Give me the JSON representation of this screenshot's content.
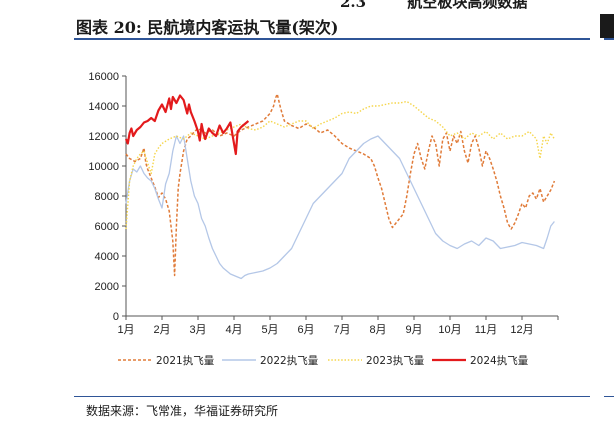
{
  "header": {
    "section_number": "2.3",
    "section_fragment": "航空板块高频数据",
    "figure_title": "图表 20:  民航境内客运执飞量(架次)",
    "source": "数据来源：飞常准，华福证券研究所"
  },
  "chart_data": {
    "type": "line",
    "title": "民航境内客运执飞量(架次)",
    "xlabel": "",
    "ylabel": "",
    "ylim": [
      0,
      16000
    ],
    "yticks": [
      "0",
      "2000",
      "4000",
      "6000",
      "8000",
      "10000",
      "12000",
      "14000",
      "16000"
    ],
    "xticks": [
      "1月",
      "2月",
      "3月",
      "4月",
      "5月",
      "6月",
      "7月",
      "8月",
      "9月",
      "10月",
      "11月",
      "12月"
    ],
    "xlim": [
      1,
      13
    ],
    "series": [
      {
        "name": "2021执飞量",
        "color": "#e07b39",
        "style": "dashed",
        "x": [
          1.0,
          1.1,
          1.25,
          1.4,
          1.5,
          1.55,
          1.6,
          1.7,
          1.8,
          1.9,
          2.0,
          2.1,
          2.2,
          2.3,
          2.35,
          2.4,
          2.45,
          2.5,
          2.6,
          2.7,
          2.8,
          2.9,
          3.0,
          3.2,
          3.4,
          3.6,
          3.8,
          4.0,
          4.2,
          4.4,
          4.6,
          4.8,
          5.0,
          5.1,
          5.15,
          5.2,
          5.3,
          5.4,
          5.6,
          5.8,
          6.0,
          6.2,
          6.4,
          6.6,
          6.8,
          7.0,
          7.2,
          7.4,
          7.6,
          7.8,
          7.9,
          8.0,
          8.1,
          8.2,
          8.3,
          8.4,
          8.5,
          8.6,
          8.7,
          8.8,
          8.9,
          9.0,
          9.1,
          9.2,
          9.3,
          9.4,
          9.5,
          9.6,
          9.7,
          9.8,
          9.9,
          10.0,
          10.1,
          10.2,
          10.3,
          10.4,
          10.5,
          10.6,
          10.7,
          10.8,
          10.9,
          11.0,
          11.1,
          11.2,
          11.3,
          11.4,
          11.5,
          11.6,
          11.7,
          11.8,
          11.9,
          12.0,
          12.1,
          12.2,
          12.3,
          12.4,
          12.5,
          12.6,
          12.7,
          12.8,
          12.9
        ],
        "values": [
          10800,
          10500,
          10300,
          10500,
          11200,
          10200,
          9800,
          9200,
          8600,
          7900,
          8200,
          7800,
          7000,
          5000,
          2700,
          6000,
          8500,
          9500,
          11000,
          11800,
          12000,
          12300,
          12500,
          12200,
          12400,
          12000,
          12200,
          12000,
          12400,
          12600,
          12800,
          13000,
          13500,
          14000,
          14500,
          14800,
          13800,
          13000,
          12700,
          12500,
          12800,
          12600,
          12200,
          12400,
          12000,
          11500,
          11200,
          11000,
          10800,
          10500,
          10000,
          9200,
          8500,
          7500,
          6500,
          5900,
          6200,
          6500,
          6800,
          8000,
          9500,
          10800,
          11500,
          10500,
          9800,
          11000,
          12000,
          11500,
          10000,
          11800,
          12200,
          11000,
          12000,
          11500,
          12300,
          11000,
          10200,
          11500,
          12000,
          11200,
          10000,
          11000,
          10500,
          9800,
          9000,
          8000,
          7200,
          6200,
          5800,
          6200,
          6800,
          7500,
          7200,
          8000,
          8200,
          7800,
          8500,
          7600,
          8000,
          8400,
          9000
        ]
      },
      {
        "name": "2022执飞量",
        "color": "#b4c7e7",
        "style": "solid",
        "x": [
          1.0,
          1.1,
          1.2,
          1.3,
          1.4,
          1.5,
          1.6,
          1.7,
          1.8,
          1.9,
          2.0,
          2.1,
          2.2,
          2.3,
          2.4,
          2.5,
          2.6,
          2.7,
          2.8,
          2.9,
          3.0,
          3.1,
          3.2,
          3.3,
          3.4,
          3.5,
          3.6,
          3.7,
          3.8,
          3.9,
          4.0,
          4.1,
          4.2,
          4.3,
          4.4,
          4.6,
          4.8,
          5.0,
          5.2,
          5.4,
          5.6,
          5.8,
          6.0,
          6.2,
          6.4,
          6.6,
          6.8,
          7.0,
          7.2,
          7.4,
          7.6,
          7.8,
          8.0,
          8.2,
          8.4,
          8.6,
          8.8,
          9.0,
          9.2,
          9.4,
          9.6,
          9.8,
          10.0,
          10.2,
          10.4,
          10.6,
          10.8,
          11.0,
          11.2,
          11.4,
          11.6,
          11.8,
          12.0,
          12.2,
          12.4,
          12.6,
          12.7,
          12.8,
          12.9
        ],
        "values": [
          7500,
          9000,
          9800,
          9600,
          10000,
          9500,
          9200,
          9000,
          8500,
          7800,
          7200,
          8800,
          9500,
          11000,
          12000,
          11500,
          12000,
          10500,
          9000,
          8000,
          7500,
          6500,
          6000,
          5200,
          4500,
          4000,
          3500,
          3200,
          3000,
          2800,
          2700,
          2600,
          2500,
          2700,
          2800,
          2900,
          3000,
          3200,
          3500,
          4000,
          4500,
          5500,
          6500,
          7500,
          8000,
          8500,
          9000,
          9500,
          10500,
          11000,
          11500,
          11800,
          12000,
          11500,
          11000,
          10500,
          9500,
          8500,
          7500,
          6500,
          5500,
          5000,
          4700,
          4500,
          4800,
          5000,
          4700,
          5200,
          5000,
          4500,
          4600,
          4700,
          4900,
          4800,
          4700,
          4500,
          5200,
          6000,
          6300
        ]
      },
      {
        "name": "2023执飞量",
        "color": "#f5d54a",
        "style": "dotted",
        "x": [
          1.0,
          1.1,
          1.2,
          1.3,
          1.4,
          1.5,
          1.6,
          1.7,
          1.8,
          1.9,
          2.0,
          2.2,
          2.4,
          2.6,
          2.8,
          3.0,
          3.2,
          3.4,
          3.6,
          3.8,
          4.0,
          4.2,
          4.4,
          4.6,
          4.8,
          5.0,
          5.2,
          5.4,
          5.6,
          5.8,
          6.0,
          6.2,
          6.4,
          6.6,
          6.8,
          7.0,
          7.2,
          7.4,
          7.6,
          7.8,
          8.0,
          8.2,
          8.4,
          8.6,
          8.8,
          9.0,
          9.2,
          9.4,
          9.6,
          9.8,
          10.0,
          10.2,
          10.4,
          10.6,
          10.8,
          11.0,
          11.2,
          11.4,
          11.6,
          11.8,
          12.0,
          12.2,
          12.4,
          12.5,
          12.6,
          12.7,
          12.8,
          12.9
        ],
        "values": [
          5800,
          9000,
          10000,
          10500,
          10800,
          11000,
          10200,
          9500,
          10800,
          11200,
          11500,
          11800,
          12000,
          11800,
          12200,
          12000,
          11800,
          12000,
          12200,
          12400,
          12600,
          12800,
          12500,
          12400,
          12600,
          13000,
          12800,
          12600,
          12800,
          13000,
          13000,
          12500,
          12800,
          13000,
          13200,
          13500,
          13600,
          13500,
          13800,
          14000,
          14000,
          14100,
          14200,
          14200,
          14300,
          14000,
          13600,
          13200,
          13000,
          12600,
          12000,
          12200,
          11800,
          12200,
          12000,
          12300,
          11800,
          12200,
          11800,
          12000,
          12000,
          12300,
          11800,
          10500,
          12000,
          11500,
          12200,
          11800
        ]
      },
      {
        "name": "2024执飞量",
        "color": "#e31a1c",
        "style": "solid",
        "x": [
          1.0,
          1.05,
          1.1,
          1.15,
          1.2,
          1.3,
          1.4,
          1.5,
          1.6,
          1.7,
          1.8,
          1.9,
          2.0,
          2.1,
          2.2,
          2.25,
          2.3,
          2.4,
          2.5,
          2.6,
          2.7,
          2.75,
          2.8,
          2.9,
          3.0,
          3.05,
          3.1,
          3.15,
          3.2,
          3.3,
          3.4,
          3.5,
          3.6,
          3.7,
          3.8,
          3.9,
          4.0,
          4.05,
          4.1,
          4.2,
          4.3,
          4.4
        ],
        "values": [
          11800,
          11500,
          12200,
          12500,
          12000,
          12400,
          12600,
          12900,
          13000,
          13200,
          13000,
          13700,
          14100,
          13600,
          14500,
          13800,
          14600,
          14200,
          14700,
          14400,
          13500,
          14100,
          13600,
          13000,
          12300,
          11700,
          12800,
          12200,
          11800,
          12500,
          12200,
          12000,
          12700,
          12200,
          12500,
          12900,
          11500,
          10800,
          12300,
          12600,
          12800,
          13000
        ]
      }
    ],
    "legend_position": "bottom"
  }
}
